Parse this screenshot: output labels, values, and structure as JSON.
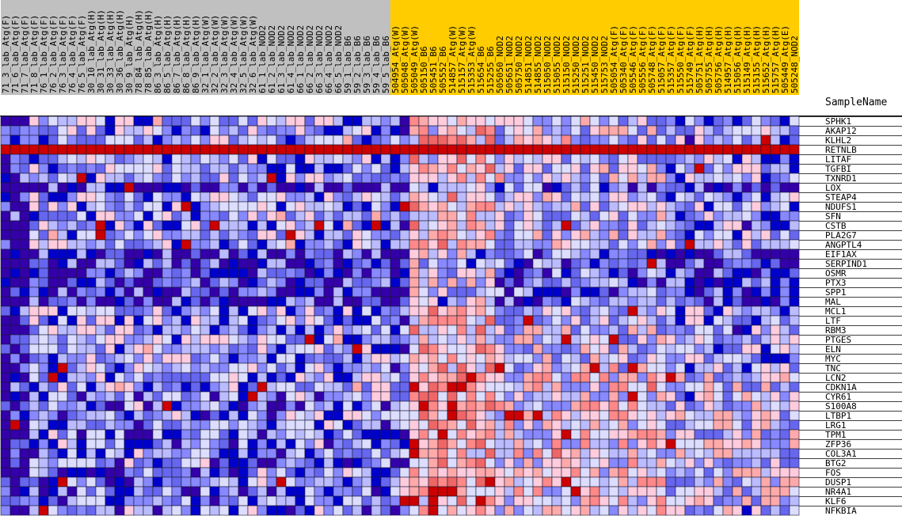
{
  "chart_data": {
    "type": "heatmap",
    "column_axis_title": "SampleName",
    "columns": [
      "71_3_lab_Atg(F)",
      "71_6_lab_Atg(F)",
      "71_7_lab_Atg(F)",
      "71_8_lab_Atg(F)",
      "76_1_lab_Atg(F)",
      "76_2_lab_Atg(F)",
      "76_3_lab_Atg(F)",
      "76_4_lab_Atg(F)",
      "76_5_lab_Atg(F)",
      "30_10_lab_Atg(H)",
      "30_31_lab_Atg(H)",
      "30_33_lab_Atg(H)",
      "30_36_lab_Atg(H)",
      "30_9_lab_Atg(H)",
      "78_84_lab_Atg(H)",
      "78_85_lab_Atg(H)",
      "86_3_lab_Atg(H)",
      "86_5_lab_Atg(H)",
      "86_7_lab_Atg(H)",
      "86_8_lab_Atg(H)",
      "86_9_lab_Atg(H)",
      "32_1_lab_Atg(W)",
      "32_2_lab_Atg(W)",
      "32_3_lab_Atg(W)",
      "32_4_lab_Atg(W)",
      "32_5_lab_Atg(W)",
      "32_6_lab_Atg(W)",
      "61_1_lab_NOD2",
      "61_2_lab_NOD2",
      "61_3_lab_NOD2",
      "61_4_lab_NOD2",
      "66_1_lab_NOD2",
      "66_2_lab_NOD2",
      "66_3_lab_NOD2",
      "66_4_lab_NOD2",
      "66_5_lab_NOD2",
      "59_1_lab_B6",
      "59_2_lab_B6",
      "59_3_lab_B6",
      "59_4_lab_B6",
      "59_5_lab_B6",
      "504954_Atg(W)",
      "505048_Atg(W)",
      "505049_Atg(W)",
      "505150_B6",
      "505451_B6",
      "505552_B6",
      "514857_Atg(W)",
      "515157_Atg(W)",
      "515353_Atg(W)",
      "515654_B6",
      "515255_B6",
      "505050_NOD2",
      "505651_NOD2",
      "505750_NOD2",
      "514851_NOD2",
      "514855_NOD2",
      "515050_NOD2",
      "515055_NOD2",
      "515150_NOD2",
      "515250_NOD2",
      "515251_NOD2",
      "515450_NOD2",
      "515753_NOD2",
      "505054_Atg(F)",
      "505340_Atg(F)",
      "505546_Atg(F)",
      "505556_Atg(F)",
      "505748_Atg(F)",
      "515057_Atg(F)",
      "515357_Atg(F)",
      "515550_Atg(F)",
      "515749_Atg(F)",
      "505751_Atg(H)",
      "505755_Atg(H)",
      "505756_Atg(H)",
      "514957_Atg(H)",
      "515056_Atg(H)",
      "515149_Atg(H)",
      "515155_Atg(H)",
      "515652_Atg(H)",
      "515757_Atg(H)",
      "505449_Atg(E)",
      "505248_NOD2"
    ],
    "column_groups": [
      {
        "count": 41,
        "color": "#c0c0c0"
      },
      {
        "count": 43,
        "color": "#ffcc00"
      }
    ],
    "rows": [
      "SPHK1",
      "AKAP12",
      "KLHL2",
      "RETNLB",
      "LITAF",
      "TGFBI",
      "TXNRD1",
      "LOX",
      "STEAP4",
      "NDUFS1",
      "SFN",
      "CSTB",
      "PLA2G7",
      "ANGPTL4",
      "EIF1AX",
      "SERPIND1",
      "OSMR",
      "PTX3",
      "SPP1",
      "MAL",
      "MCL1",
      "LTF",
      "RBM3",
      "PTGES",
      "ELN",
      "MYC",
      "TNC",
      "LCN2",
      "CDKN1A",
      "CYR61",
      "S100A8",
      "LTBP1",
      "LRG1",
      "TPM1",
      "ZFP36",
      "COL3A1",
      "BTG2",
      "FOS",
      "DUSP1",
      "NR4A1",
      "KLF6",
      "NFKBIA"
    ],
    "color_scale": [
      "#3300aa",
      "#0000cc",
      "#6666ee",
      "#8888ff",
      "#bbbbff",
      "#ddddff",
      "#ffccdd",
      "#ffaaaa",
      "#ff8888",
      "#ee6666",
      "#cc0000"
    ],
    "values_note": "level index into color_scale (0 = lowest, 10 = highest)"
  }
}
